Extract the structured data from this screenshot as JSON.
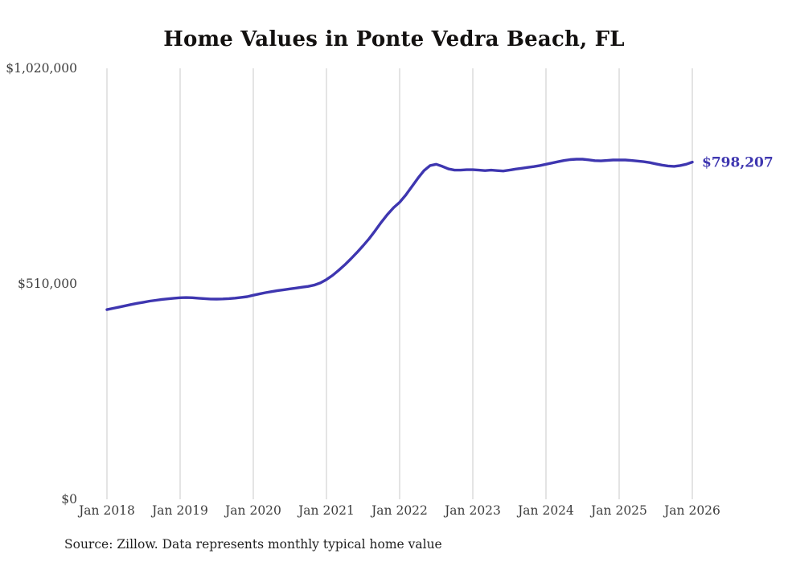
{
  "page": {
    "title": "Home Values in Ponte Vedra Beach, FL",
    "source_note": "Source: Zillow. Data represents monthly typical home value"
  },
  "colors": {
    "line": "#3e36b0",
    "end_label": "#3e36b0",
    "grid": "#c9c9c9",
    "axis_label": "#3d3d3d",
    "title": "#131110",
    "background": "#ffffff"
  },
  "chart_data": {
    "type": "line",
    "title": "Home Values in Ponte Vedra Beach, FL",
    "xlabel": "",
    "ylabel": "",
    "series_name": "Monthly typical home value",
    "x_start": "Jan 2018",
    "x_interval": "monthly",
    "x_ticks": [
      "Jan 2018",
      "Jan 2019",
      "Jan 2020",
      "Jan 2021",
      "Jan 2022",
      "Jan 2023",
      "Jan 2024",
      "Jan 2025",
      "Jan 2026"
    ],
    "y_ticks": [
      {
        "label": "$0",
        "value": 0
      },
      {
        "label": "$510,000",
        "value": 510000
      },
      {
        "label": "$1,020,000",
        "value": 1020000
      }
    ],
    "y_max": 1020000,
    "grid": "vertical-only",
    "legend": "none",
    "end_label": "$798,207",
    "final_value": 798207,
    "values": [
      449000,
      452000,
      455000,
      458000,
      461000,
      464000,
      466500,
      469000,
      471000,
      473000,
      474500,
      476000,
      477000,
      477500,
      477000,
      476000,
      475000,
      474000,
      473800,
      474200,
      475000,
      476200,
      477800,
      479500,
      483000,
      486000,
      489000,
      491500,
      494000,
      496000,
      498000,
      500000,
      502000,
      504000,
      507000,
      512000,
      520000,
      530000,
      542000,
      555000,
      569000,
      584000,
      600000,
      617000,
      636000,
      656000,
      674000,
      690000,
      703000,
      720000,
      740000,
      760000,
      778000,
      790000,
      793000,
      788000,
      782000,
      779000,
      779000,
      780000,
      780000,
      779000,
      778000,
      779000,
      778000,
      777000,
      779000,
      781500,
      783500,
      785500,
      787500,
      790000,
      793000,
      796000,
      799000,
      802000,
      804000,
      805000,
      805000,
      803500,
      801500,
      801000,
      802000,
      803000,
      803000,
      803000,
      802000,
      800500,
      799000,
      797000,
      794000,
      791000,
      789000,
      788000,
      790000,
      793000,
      798207
    ],
    "layout": {
      "x_first": 133,
      "year_step": 91,
      "plot_top": 85,
      "plot_bottom": 621,
      "y_label_right_x": 96,
      "x_label_baseline_y": 640,
      "axis_font_size": 15.5,
      "line_width": 3.4,
      "end_label_font_size": 17
    }
  }
}
